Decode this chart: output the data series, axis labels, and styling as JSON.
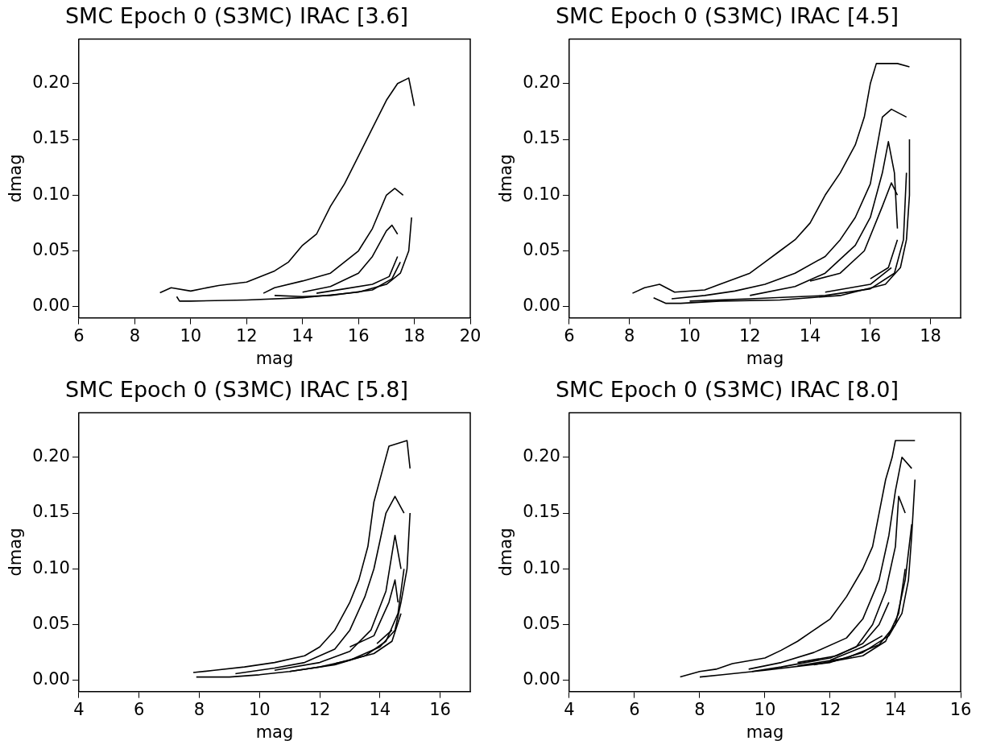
{
  "chart_data": [
    {
      "type": "line",
      "title": "SMC Epoch 0 (S3MC) IRAC [3.6]",
      "xlabel": "mag",
      "ylabel": "dmag",
      "xlim": [
        6,
        20
      ],
      "xticks": [
        6,
        8,
        10,
        12,
        14,
        16,
        18,
        20
      ],
      "ylim": [
        -0.01,
        0.24
      ],
      "yticks": [
        {
          "value": 0,
          "label": "0.00"
        },
        {
          "value": 0.05,
          "label": "0.05"
        },
        {
          "value": 0.1,
          "label": "0.10"
        },
        {
          "value": 0.15,
          "label": "0.15"
        },
        {
          "value": 0.2,
          "label": "0.20"
        }
      ],
      "grid": false,
      "legend": false,
      "marker": "none",
      "line_style": "solid",
      "series": [
        {
          "color": "#000000",
          "x": [
            8.9,
            9.3,
            10,
            11,
            12,
            13,
            13.5,
            14,
            14.5,
            15,
            15.5,
            16,
            16.5,
            17,
            17.4,
            17.8,
            18
          ],
          "values": [
            0.0125,
            0.017,
            0.014,
            0.019,
            0.022,
            0.032,
            0.04,
            0.055,
            0.065,
            0.09,
            0.11,
            0.135,
            0.16,
            0.185,
            0.2,
            0.205,
            0.18
          ]
        },
        {
          "color": "#000000",
          "x": [
            9.5,
            9.6,
            10,
            12,
            14,
            16,
            17,
            17.5,
            17.8,
            17.9
          ],
          "values": [
            0.009,
            0.005,
            0.005,
            0.006,
            0.008,
            0.013,
            0.02,
            0.03,
            0.05,
            0.08
          ]
        },
        {
          "color": "#000000",
          "x": [
            12.6,
            13,
            14,
            15,
            15.5,
            16,
            16.5,
            17,
            17.3,
            17.6
          ],
          "values": [
            0.012,
            0.017,
            0.023,
            0.03,
            0.04,
            0.05,
            0.07,
            0.1,
            0.106,
            0.1
          ]
        },
        {
          "color": "#000000",
          "x": [
            13,
            14,
            15,
            16.5,
            17.2,
            17.5
          ],
          "values": [
            0.01,
            0.009,
            0.01,
            0.015,
            0.025,
            0.04
          ]
        },
        {
          "color": "#000000",
          "x": [
            14,
            15,
            16,
            16.5,
            17,
            17.2,
            17.4
          ],
          "values": [
            0.013,
            0.018,
            0.03,
            0.045,
            0.068,
            0.073,
            0.065
          ]
        },
        {
          "color": "#000000",
          "x": [
            14.5,
            15.5,
            16.5,
            17.1,
            17.4
          ],
          "values": [
            0.012,
            0.016,
            0.02,
            0.027,
            0.045
          ]
        }
      ]
    },
    {
      "type": "line",
      "title": "SMC Epoch 0 (S3MC) IRAC [4.5]",
      "xlabel": "mag",
      "ylabel": "dmag",
      "xlim": [
        6,
        19
      ],
      "xticks": [
        6,
        8,
        10,
        12,
        14,
        16,
        18
      ],
      "ylim": [
        -0.01,
        0.24
      ],
      "yticks": [
        {
          "value": 0,
          "label": "0.00"
        },
        {
          "value": 0.05,
          "label": "0.05"
        },
        {
          "value": 0.1,
          "label": "0.10"
        },
        {
          "value": 0.15,
          "label": "0.15"
        },
        {
          "value": 0.2,
          "label": "0.20"
        }
      ],
      "grid": false,
      "legend": false,
      "marker": "none",
      "line_style": "solid",
      "series": [
        {
          "color": "#000000",
          "x": [
            8.1,
            8.5,
            9,
            9.5,
            10.5,
            11,
            12,
            12.5,
            13,
            13.5,
            14,
            14.5,
            15,
            15.5,
            15.8,
            16,
            16.2,
            16.9,
            17.3
          ],
          "values": [
            0.012,
            0.017,
            0.02,
            0.013,
            0.015,
            0.02,
            0.03,
            0.04,
            0.05,
            0.06,
            0.075,
            0.1,
            0.12,
            0.145,
            0.17,
            0.2,
            0.218,
            0.218,
            0.215
          ]
        },
        {
          "color": "#000000",
          "x": [
            8.8,
            9.2,
            9.7,
            11,
            13,
            15,
            16.5,
            17,
            17.2,
            17.3,
            17.3
          ],
          "values": [
            0.008,
            0.003,
            0.003,
            0.005,
            0.006,
            0.01,
            0.02,
            0.035,
            0.06,
            0.1,
            0.15
          ]
        },
        {
          "color": "#000000",
          "x": [
            9.4,
            10.5,
            11.5,
            12.5,
            13.5,
            14.5,
            15,
            15.5,
            16,
            16.2,
            16.4,
            16.7,
            17.2
          ],
          "values": [
            0.007,
            0.01,
            0.014,
            0.02,
            0.03,
            0.045,
            0.06,
            0.08,
            0.11,
            0.14,
            0.17,
            0.177,
            0.17
          ]
        },
        {
          "color": "#000000",
          "x": [
            10,
            12,
            14.5,
            16,
            16.8,
            17.1,
            17.2
          ],
          "values": [
            0.005,
            0.007,
            0.01,
            0.016,
            0.03,
            0.06,
            0.12
          ]
        },
        {
          "color": "#000000",
          "x": [
            12,
            13.5,
            14.5,
            15.5,
            16,
            16.4,
            16.6,
            16.8,
            16.9
          ],
          "values": [
            0.01,
            0.018,
            0.03,
            0.055,
            0.08,
            0.12,
            0.148,
            0.12,
            0.07
          ]
        },
        {
          "color": "#000000",
          "x": [
            14.5,
            16,
            16.7
          ],
          "values": [
            0.013,
            0.02,
            0.035
          ]
        },
        {
          "color": "#000000",
          "x": [
            14,
            15,
            15.8,
            16.4,
            16.7,
            16.9
          ],
          "values": [
            0.023,
            0.03,
            0.05,
            0.09,
            0.111,
            0.1
          ]
        },
        {
          "color": "#000000",
          "x": [
            16,
            16.6,
            16.9
          ],
          "values": [
            0.025,
            0.035,
            0.06
          ]
        }
      ]
    },
    {
      "type": "line",
      "title": "SMC Epoch 0 (S3MC) IRAC [5.8]",
      "xlabel": "mag",
      "ylabel": "dmag",
      "xlim": [
        4,
        17
      ],
      "xticks": [
        4,
        6,
        8,
        10,
        12,
        14,
        16
      ],
      "ylim": [
        -0.01,
        0.24
      ],
      "yticks": [
        {
          "value": 0,
          "label": "0.00"
        },
        {
          "value": 0.05,
          "label": "0.05"
        },
        {
          "value": 0.1,
          "label": "0.10"
        },
        {
          "value": 0.15,
          "label": "0.15"
        },
        {
          "value": 0.2,
          "label": "0.20"
        }
      ],
      "grid": false,
      "legend": false,
      "marker": "none",
      "line_style": "solid",
      "series": [
        {
          "color": "#000000",
          "x": [
            7.8,
            8.5,
            9.5,
            10.5,
            11.5,
            12,
            12.5,
            13,
            13.3,
            13.6,
            13.8,
            14.1,
            14.3,
            14.9,
            15
          ],
          "values": [
            0.007,
            0.009,
            0.012,
            0.016,
            0.022,
            0.03,
            0.045,
            0.07,
            0.09,
            0.12,
            0.16,
            0.19,
            0.21,
            0.215,
            0.19
          ]
        },
        {
          "color": "#000000",
          "x": [
            7.9,
            9,
            10,
            11,
            12,
            13,
            14,
            14.5,
            14.7,
            14.9,
            15
          ],
          "values": [
            0.003,
            0.003,
            0.005,
            0.008,
            0.012,
            0.018,
            0.03,
            0.045,
            0.07,
            0.1,
            0.15
          ]
        },
        {
          "color": "#000000",
          "x": [
            9.2,
            10.5,
            11.5,
            12.5,
            13,
            13.5,
            13.8,
            14.2,
            14.5,
            14.8
          ],
          "values": [
            0.006,
            0.011,
            0.016,
            0.028,
            0.045,
            0.075,
            0.1,
            0.15,
            0.165,
            0.15
          ]
        },
        {
          "color": "#000000",
          "x": [
            11,
            12.5,
            13.5,
            14.2,
            14.6,
            14.8
          ],
          "values": [
            0.008,
            0.014,
            0.022,
            0.035,
            0.06,
            0.1
          ]
        },
        {
          "color": "#000000",
          "x": [
            10.5,
            12,
            13,
            13.7,
            14.2,
            14.5,
            14.7
          ],
          "values": [
            0.009,
            0.016,
            0.026,
            0.045,
            0.08,
            0.13,
            0.1
          ]
        },
        {
          "color": "#000000",
          "x": [
            12.5,
            13.8,
            14.4,
            14.7
          ],
          "values": [
            0.015,
            0.024,
            0.035,
            0.06
          ]
        },
        {
          "color": "#000000",
          "x": [
            13,
            13.8,
            14.3,
            14.5,
            14.6
          ],
          "values": [
            0.03,
            0.04,
            0.07,
            0.09,
            0.07
          ]
        },
        {
          "color": "#000000",
          "x": [
            13.9,
            14.4
          ],
          "values": [
            0.033,
            0.045
          ]
        }
      ]
    },
    {
      "type": "line",
      "title": "SMC Epoch 0 (S3MC) IRAC [8.0]",
      "xlabel": "mag",
      "ylabel": "dmag",
      "xlim": [
        4,
        16
      ],
      "xticks": [
        4,
        6,
        8,
        10,
        12,
        14,
        16
      ],
      "ylim": [
        -0.01,
        0.24
      ],
      "yticks": [
        {
          "value": 0,
          "label": "0.00"
        },
        {
          "value": 0.05,
          "label": "0.05"
        },
        {
          "value": 0.1,
          "label": "0.10"
        },
        {
          "value": 0.15,
          "label": "0.15"
        },
        {
          "value": 0.2,
          "label": "0.20"
        }
      ],
      "grid": false,
      "legend": false,
      "marker": "none",
      "line_style": "solid",
      "series": [
        {
          "color": "#000000",
          "x": [
            7.4,
            8,
            8.5,
            9,
            10,
            10.5,
            11,
            11.5,
            12,
            12.5,
            13,
            13.3,
            13.5,
            13.7,
            13.9,
            14,
            14.6
          ],
          "values": [
            0.003,
            0.008,
            0.01,
            0.015,
            0.02,
            0.027,
            0.035,
            0.045,
            0.055,
            0.075,
            0.1,
            0.12,
            0.15,
            0.18,
            0.2,
            0.215,
            0.215
          ]
        },
        {
          "color": "#000000",
          "x": [
            8,
            8.7,
            10,
            12,
            13,
            13.8,
            14.2,
            14.4,
            14.5,
            14.6
          ],
          "values": [
            0.003,
            0.005,
            0.009,
            0.016,
            0.025,
            0.04,
            0.06,
            0.09,
            0.13,
            0.18
          ]
        },
        {
          "color": "#000000",
          "x": [
            9.5,
            10.5,
            11.5,
            12.5,
            13,
            13.5,
            13.8,
            14,
            14.2,
            14.5
          ],
          "values": [
            0.01,
            0.016,
            0.025,
            0.038,
            0.055,
            0.09,
            0.13,
            0.17,
            0.2,
            0.19
          ]
        },
        {
          "color": "#000000",
          "x": [
            11,
            12.5,
            13.5,
            14,
            14.3,
            14.5
          ],
          "values": [
            0.013,
            0.02,
            0.032,
            0.05,
            0.09,
            0.14
          ]
        },
        {
          "color": "#000000",
          "x": [
            9.6,
            10.5,
            12,
            12.8,
            13.3,
            13.7,
            14,
            14.1,
            14.3
          ],
          "values": [
            0.008,
            0.012,
            0.02,
            0.03,
            0.05,
            0.08,
            0.12,
            0.165,
            0.15
          ]
        },
        {
          "color": "#000000",
          "x": [
            11.5,
            13,
            13.7,
            14.1,
            14.3
          ],
          "values": [
            0.014,
            0.022,
            0.035,
            0.06,
            0.1
          ]
        },
        {
          "color": "#000000",
          "x": [
            11,
            12.2,
            13,
            13.5,
            13.8
          ],
          "values": [
            0.016,
            0.022,
            0.033,
            0.05,
            0.07
          ]
        },
        {
          "color": "#000000",
          "x": [
            12,
            13,
            13.6
          ],
          "values": [
            0.018,
            0.03,
            0.04
          ]
        }
      ]
    }
  ]
}
